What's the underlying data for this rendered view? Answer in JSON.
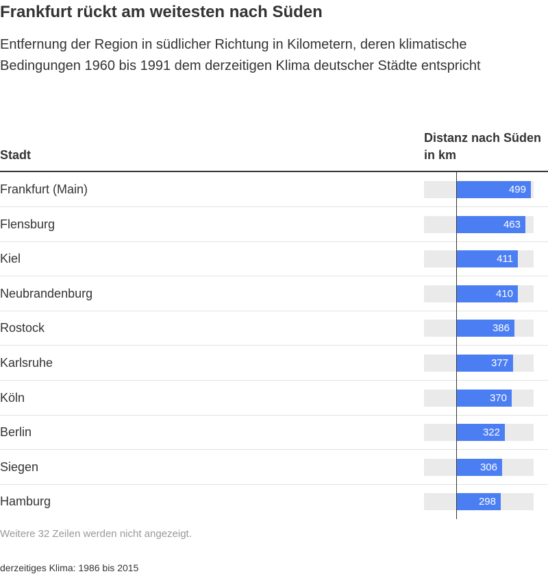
{
  "title": "Frankfurt rückt am weitesten nach Süden",
  "subtitle": "Entfernung der Region in südlicher Richtung in Kilometern, deren klimatische Bedingungen 1960 bis 1991 dem derzeitigen Klima deutscher Städte entspricht",
  "columns": {
    "city": "Stadt",
    "distance": "Distanz nach Süden in km"
  },
  "note": "Weitere 32 Zeilen werden nicht angezeigt.",
  "footnote": "derzeitiges Klima: 1986 bis 2015",
  "colors": {
    "bar": "#4c7ef3",
    "track": "#eaeaea"
  },
  "chart_data": {
    "type": "bar",
    "orientation": "horizontal",
    "categories": [
      "Frankfurt (Main)",
      "Flensburg",
      "Kiel",
      "Neubrandenburg",
      "Rostock",
      "Karlsruhe",
      "Köln",
      "Berlin",
      "Siegen",
      "Hamburg"
    ],
    "values": [
      499,
      463,
      411,
      410,
      386,
      377,
      370,
      322,
      306,
      298
    ],
    "labels": [
      "499",
      "463",
      "411",
      "410",
      "386",
      "377",
      "370",
      "322",
      "306",
      "298"
    ],
    "title": "Frankfurt rückt am weitesten nach Süden",
    "xlabel": "Distanz nach Süden in km",
    "ylabel": "Stadt",
    "xlim": [
      -215,
      515
    ],
    "grid": false,
    "legend": "none"
  }
}
